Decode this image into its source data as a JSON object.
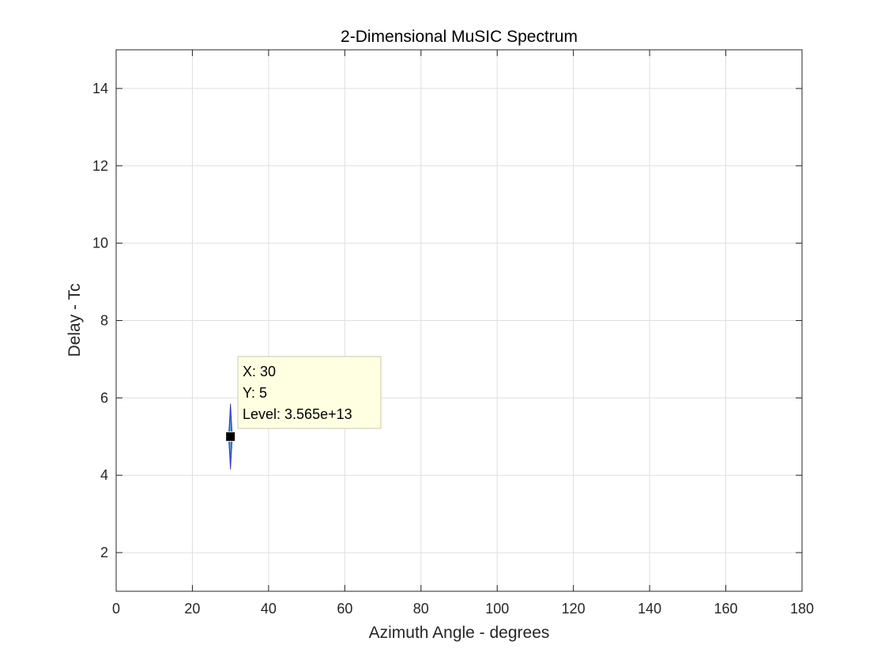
{
  "chart_data": {
    "type": "contour",
    "title": "2-Dimensional MuSIC Spectrum",
    "xlabel": "Azimuth Angle - degrees",
    "ylabel": "Delay - Tc",
    "xlim": [
      0,
      180
    ],
    "ylim": [
      1,
      15
    ],
    "xticks": [
      0,
      20,
      40,
      60,
      80,
      100,
      120,
      140,
      160,
      180
    ],
    "yticks": [
      2,
      4,
      6,
      8,
      10,
      12,
      14
    ],
    "grid": true,
    "peak": {
      "x": 30,
      "y": 5,
      "x_extent": [
        29.5,
        30.5
      ],
      "y_extent": [
        4.15,
        5.85
      ]
    },
    "contour_colors": [
      "#3b49d8",
      "#4a7fe8",
      "#36b7c8",
      "#8dd06a"
    ],
    "datatip": {
      "x_label": "X: 30",
      "y_label": "Y: 5",
      "level_label": "Level: 3.565e+13",
      "x": 30,
      "y": 5,
      "level": 35650000000000.0
    }
  }
}
